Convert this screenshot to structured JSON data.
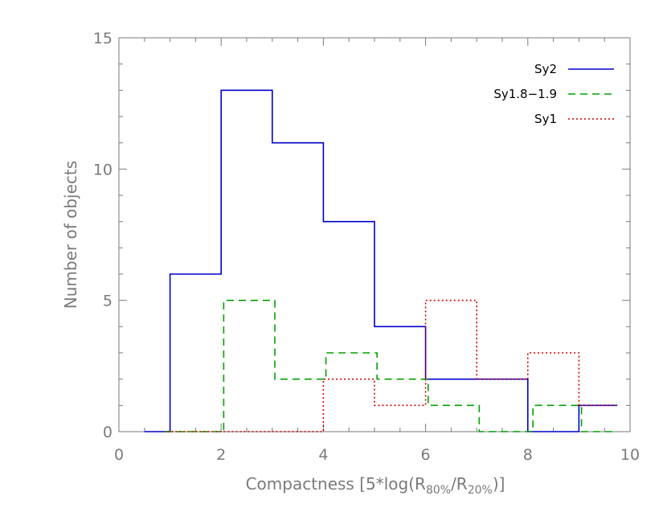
{
  "chart_data": {
    "type": "step-histogram",
    "title": "",
    "xlabel": {
      "prefix": "Compactness [5*log(R",
      "sub1": "80%",
      "mid": "/R",
      "sub2": "20%",
      "suffix": ")]"
    },
    "ylabel": "Number of objects",
    "xlim": [
      0,
      10
    ],
    "ylim": [
      0,
      15
    ],
    "x_ticks": [
      0,
      2,
      4,
      6,
      8,
      10
    ],
    "y_ticks": [
      0,
      5,
      10,
      15
    ],
    "x_tick_labels": [
      "0",
      "2",
      "4",
      "6",
      "8",
      "10"
    ],
    "y_tick_labels": [
      "0",
      "5",
      "10",
      "15"
    ],
    "legend_position": "top-right",
    "series": [
      {
        "name": "Sy2",
        "color": "#0000cc",
        "style": "solid",
        "edges": [
          0.5,
          0.95,
          1.0,
          2.0,
          3.0,
          4.0,
          5.0,
          6.0,
          7.0,
          8.0,
          8.05,
          9.0,
          9.75
        ],
        "values": [
          0,
          0,
          6,
          13,
          11,
          8,
          4,
          2,
          2,
          0,
          0,
          1
        ]
      },
      {
        "name": "Sy1.8−1.9",
        "color": "#00a000",
        "style": "dashed",
        "edges": [
          0.9,
          2.05,
          3.05,
          4.05,
          5.05,
          6.05,
          7.05,
          8.1,
          9.05,
          9.75
        ],
        "values": [
          0,
          5,
          2,
          3,
          2,
          1,
          0,
          1,
          0
        ]
      },
      {
        "name": "Sy1",
        "color": "#cc0000",
        "style": "dotted",
        "edges": [
          0.95,
          4.0,
          5.0,
          6.0,
          7.0,
          8.0,
          9.0,
          9.75
        ],
        "values": [
          0,
          2,
          1,
          5,
          2,
          3,
          1
        ]
      }
    ]
  }
}
